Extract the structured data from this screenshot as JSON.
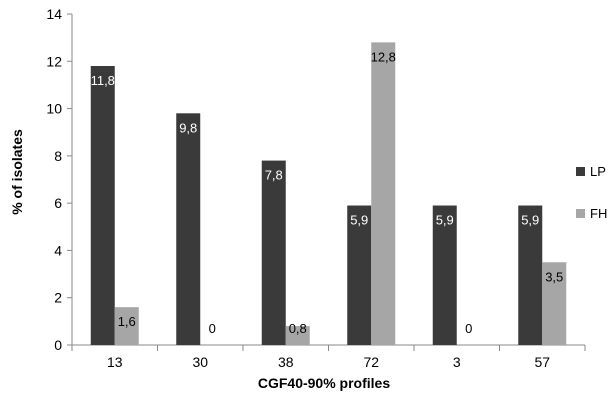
{
  "chart_data": {
    "type": "bar",
    "categories": [
      "13",
      "30",
      "38",
      "72",
      "3",
      "57"
    ],
    "series": [
      {
        "name": "LP",
        "values": [
          11.8,
          9.8,
          7.8,
          5.9,
          5.9,
          5.9
        ],
        "labels": [
          "11,8",
          "9,8",
          "7,8",
          "5,9",
          "5,9",
          "5,9"
        ],
        "color": "#3a3a3a",
        "label_color": "#ffffff"
      },
      {
        "name": "FH",
        "values": [
          1.6,
          0,
          0.8,
          12.8,
          0,
          3.5
        ],
        "labels": [
          "1,6",
          "0",
          "0,8",
          "12,8",
          "0",
          "3,5"
        ],
        "color": "#a6a6a6",
        "label_color": "#000000"
      }
    ],
    "xlabel": "CGF40-90% profiles",
    "ylabel": "% of isolates",
    "ylim": [
      0,
      14
    ],
    "yticks": [
      0,
      2,
      4,
      6,
      8,
      10,
      12,
      14
    ],
    "grid": false,
    "legend_position": "right"
  }
}
